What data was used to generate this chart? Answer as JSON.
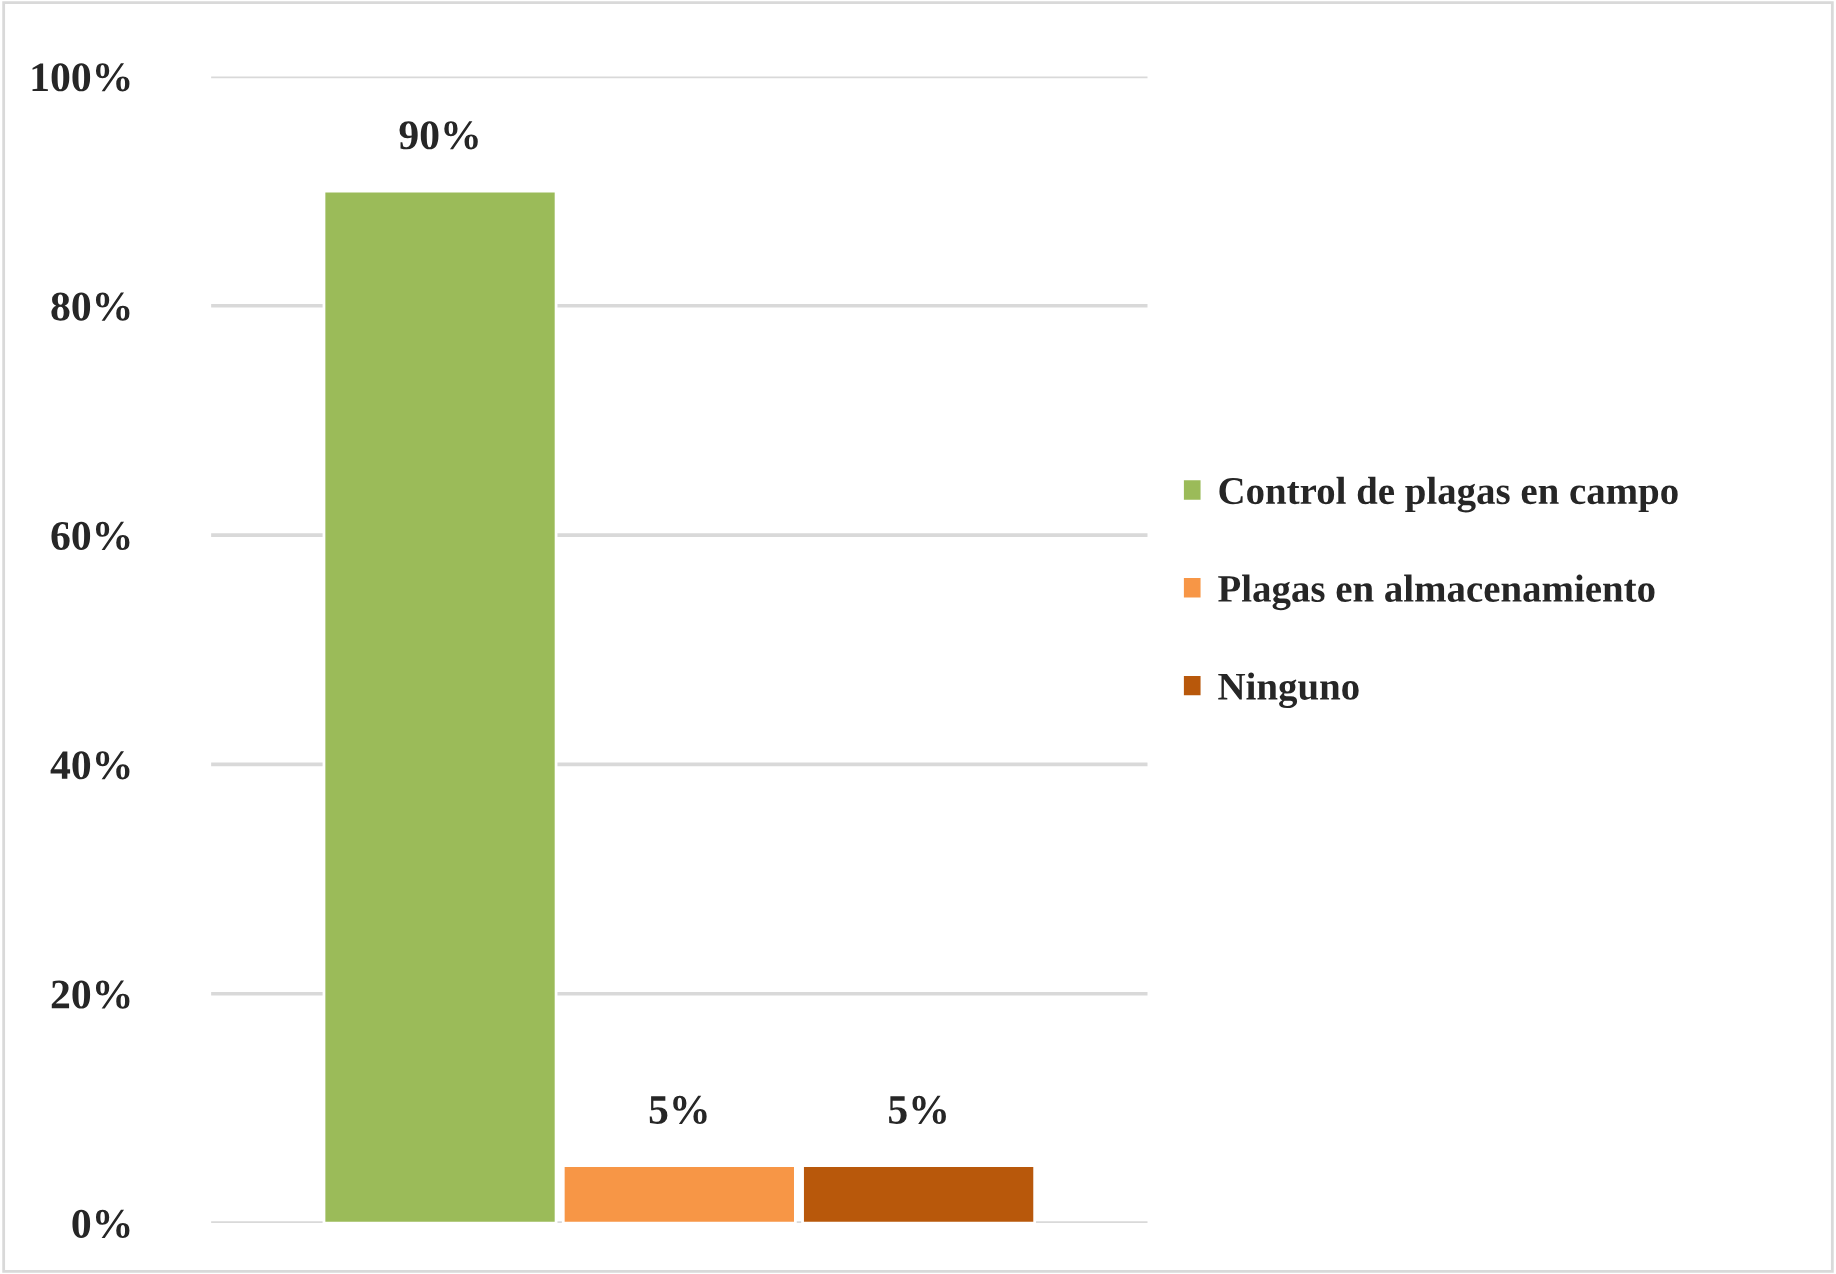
{
  "chart_data": {
    "type": "bar",
    "categories": [
      null
    ],
    "series": [
      {
        "name": "Control de plagas en campo",
        "color": "#9bbb59",
        "values": [
          90
        ],
        "value_labels": [
          "90%"
        ]
      },
      {
        "name": "Plagas en almacenamiento",
        "color": "#f79646",
        "values": [
          5
        ],
        "value_labels": [
          "5%"
        ]
      },
      {
        "name": "Ninguno",
        "color": "#b8580b",
        "values": [
          5
        ],
        "value_labels": [
          "5%"
        ]
      }
    ],
    "ylim": [
      0,
      100
    ],
    "yticks": [
      {
        "value": 0,
        "label": "0%"
      },
      {
        "value": 20,
        "label": "20%"
      },
      {
        "value": 40,
        "label": "40%"
      },
      {
        "value": 60,
        "label": "60%"
      },
      {
        "value": 80,
        "label": "80%"
      },
      {
        "value": 100,
        "label": "100%"
      }
    ],
    "grid": "y",
    "legend": "right",
    "tick_labels": "y"
  }
}
